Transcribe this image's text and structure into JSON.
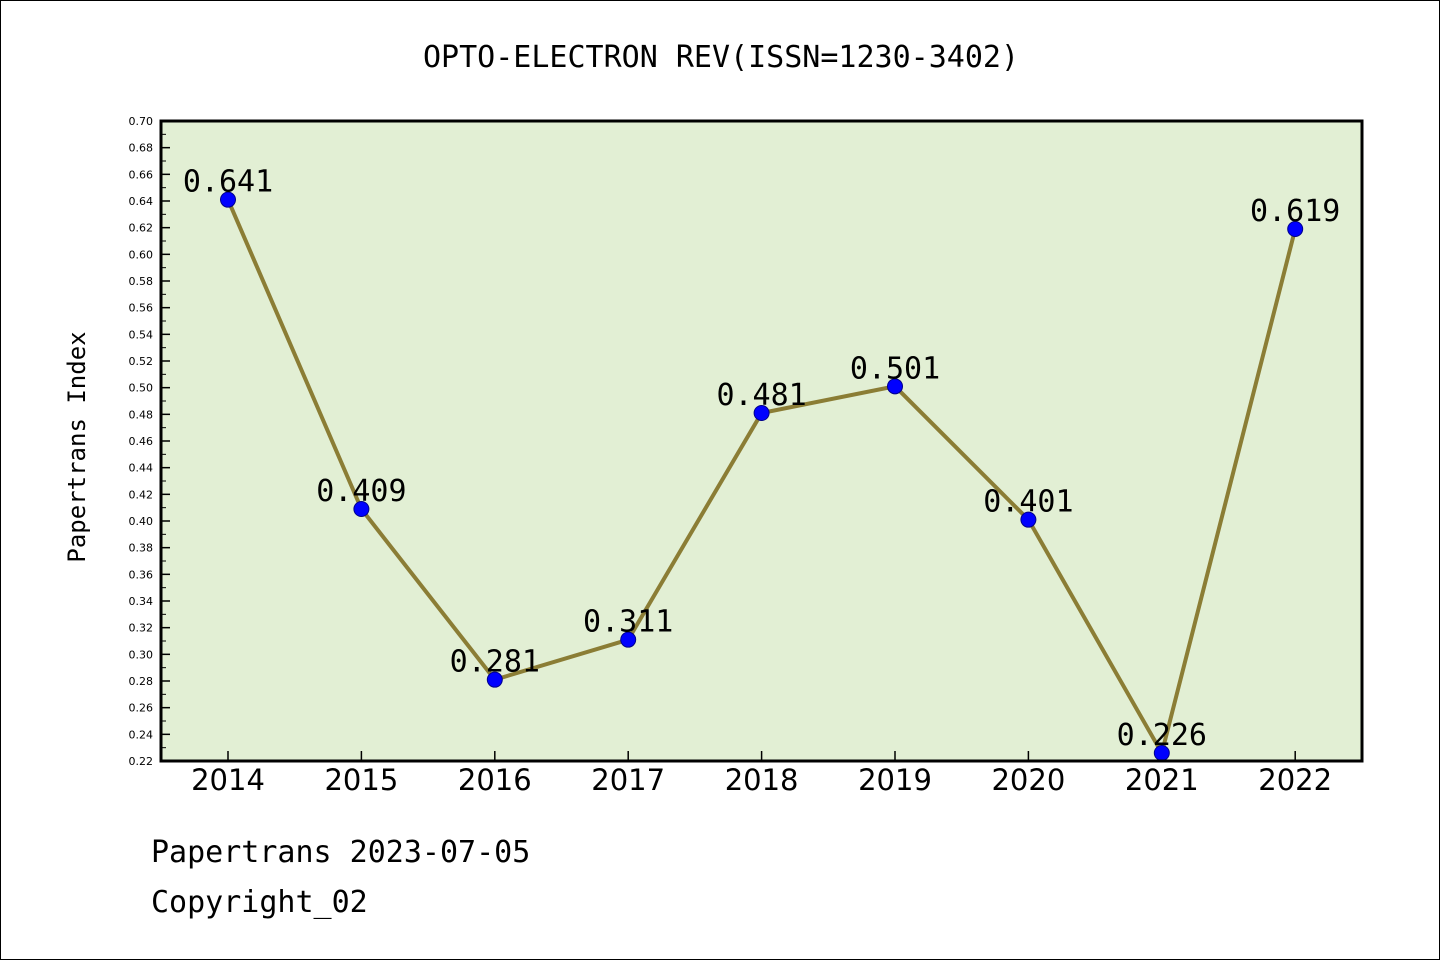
{
  "chart_data": {
    "type": "line",
    "title": "OPTO-ELECTRON REV(ISSN=1230-3402)",
    "ylabel": "Papertrans Index",
    "xlabel": "",
    "categories": [
      "2014",
      "2015",
      "2016",
      "2017",
      "2018",
      "2019",
      "2020",
      "2021",
      "2022"
    ],
    "series": [
      {
        "values": [
          0.641,
          0.409,
          0.281,
          0.311,
          0.481,
          0.501,
          0.401,
          0.226,
          0.619
        ],
        "labels": [
          "0.641",
          "0.409",
          "0.281",
          "0.311",
          "0.481",
          "0.501",
          "0.401",
          "0.226",
          "0.619"
        ]
      }
    ],
    "ylim": [
      0.22,
      0.7
    ],
    "yticks": [
      "0.22",
      "0.24",
      "0.26",
      "0.28",
      "0.30",
      "0.32",
      "0.34",
      "0.36",
      "0.38",
      "0.40",
      "0.42",
      "0.44",
      "0.46",
      "0.48",
      "0.50",
      "0.52",
      "0.54",
      "0.56",
      "0.58",
      "0.60",
      "0.62",
      "0.64",
      "0.66",
      "0.68",
      "0.70"
    ],
    "grid": false,
    "legend": "none",
    "colors": {
      "plot_background": "#e2efd4",
      "line": "#8b7d35",
      "marker": "#0000ff"
    }
  },
  "footer": {
    "date_text": "Papertrans 2023-07-05",
    "copyright_text": "Copyright_02"
  }
}
